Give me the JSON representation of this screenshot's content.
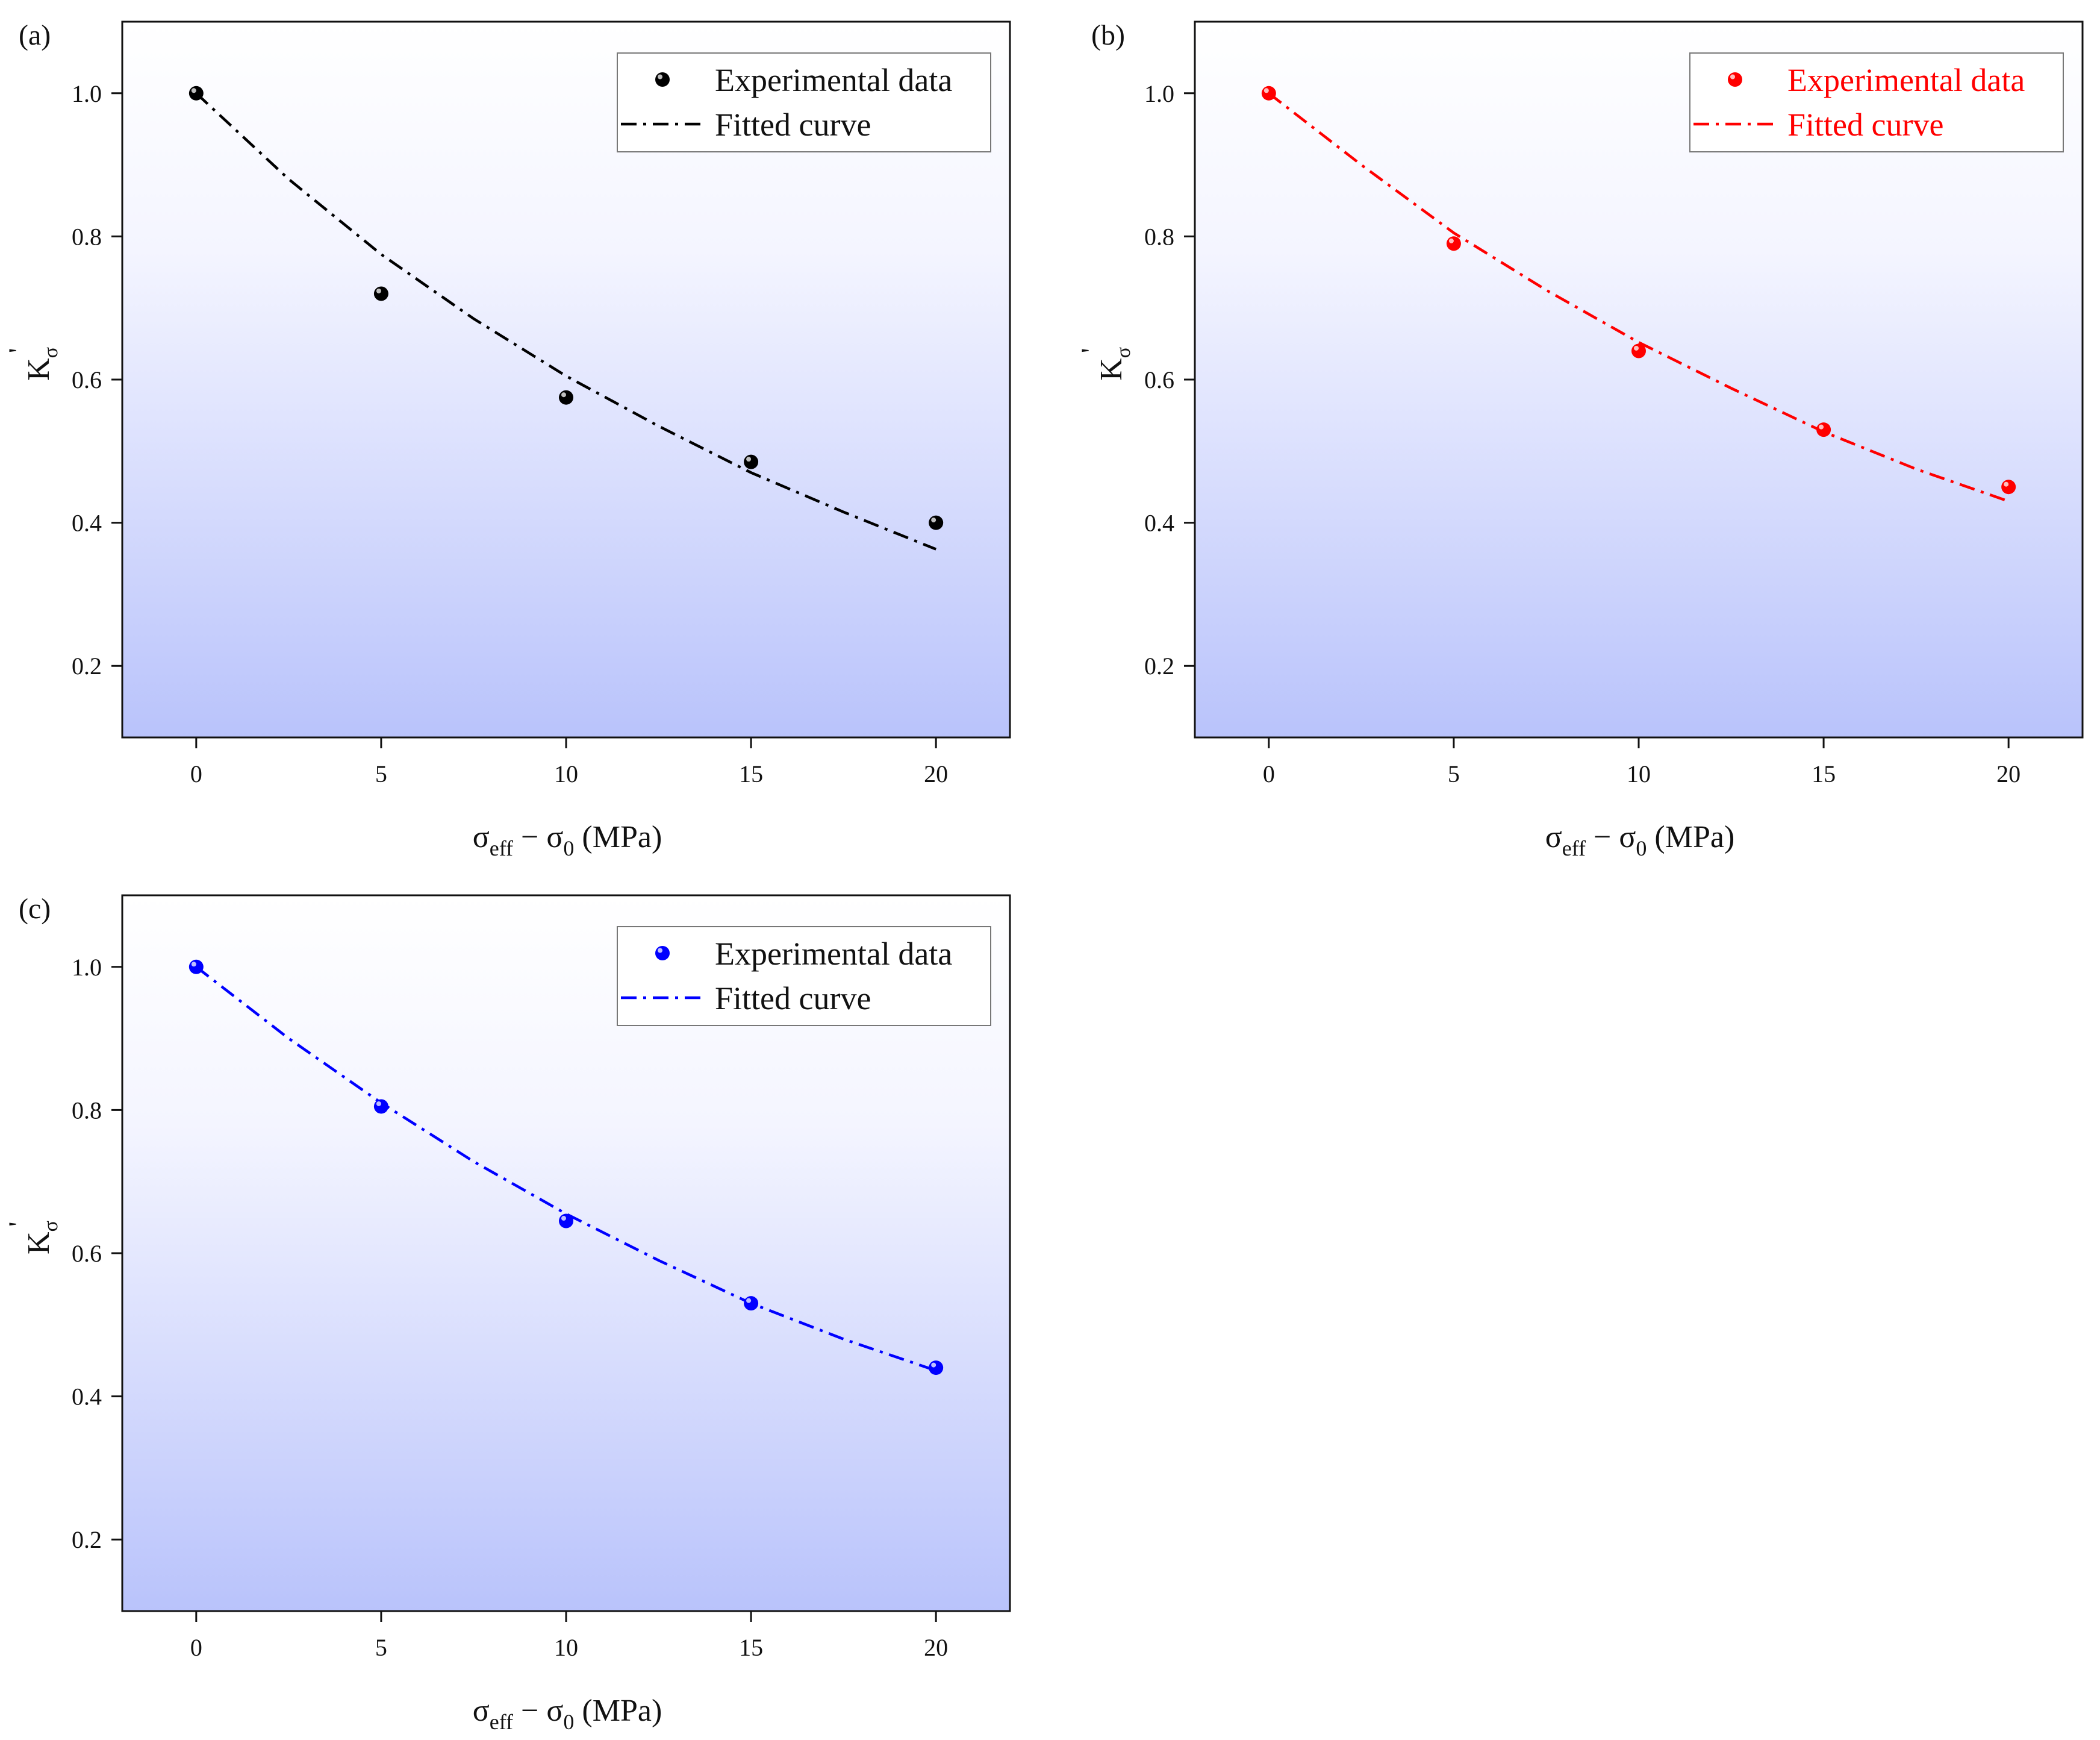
{
  "chart_data": [
    {
      "type": "scatter",
      "panel_label": "(a)",
      "accent_color": "#000000",
      "legend_text_color": "#111111",
      "legend": {
        "experimental": "Experimental data",
        "fitted": "Fitted curve"
      },
      "x_ticks": [
        "0",
        "5",
        "10",
        "15",
        "20"
      ],
      "y_ticks": [
        "0.2",
        "0.4",
        "0.6",
        "0.8",
        "1.0"
      ],
      "xlim": [
        -2,
        22
      ],
      "ylim": [
        0.1,
        1.1
      ],
      "series": [
        {
          "name": "Experimental data",
          "x": [
            0,
            5,
            10,
            15,
            20
          ],
          "y": [
            1.0,
            0.72,
            0.575,
            0.485,
            0.4
          ]
        },
        {
          "name": "Fitted curve",
          "x": [
            0,
            2.5,
            5,
            7.5,
            10,
            12.5,
            15,
            17.5,
            20
          ],
          "y": [
            1.0,
            0.88,
            0.775,
            0.685,
            0.605,
            0.535,
            0.47,
            0.415,
            0.363
          ]
        }
      ]
    },
    {
      "type": "scatter",
      "panel_label": "(b)",
      "accent_color": "#ff0000",
      "legend_text_color": "#ff0000",
      "legend": {
        "experimental": "Experimental data",
        "fitted": "Fitted curve"
      },
      "x_ticks": [
        "0",
        "5",
        "10",
        "15",
        "20"
      ],
      "y_ticks": [
        "0.2",
        "0.4",
        "0.6",
        "0.8",
        "1.0"
      ],
      "xlim": [
        -2,
        22
      ],
      "ylim": [
        0.1,
        1.1
      ],
      "series": [
        {
          "name": "Experimental data",
          "x": [
            0,
            5,
            10,
            15,
            20
          ],
          "y": [
            1.0,
            0.79,
            0.64,
            0.53,
            0.45
          ]
        },
        {
          "name": "Fitted curve",
          "x": [
            0,
            2.5,
            5,
            7.5,
            10,
            12.5,
            15,
            17.5,
            20
          ],
          "y": [
            1.0,
            0.9,
            0.805,
            0.725,
            0.652,
            0.588,
            0.527,
            0.475,
            0.43
          ]
        }
      ]
    },
    {
      "type": "scatter",
      "panel_label": "(c)",
      "accent_color": "#0000ff",
      "legend_text_color": "#111111",
      "legend": {
        "experimental": "Experimental data",
        "fitted": "Fitted curve"
      },
      "x_ticks": [
        "0",
        "5",
        "10",
        "15",
        "20"
      ],
      "y_ticks": [
        "0.2",
        "0.4",
        "0.6",
        "0.8",
        "1.0"
      ],
      "xlim": [
        -2,
        22
      ],
      "ylim": [
        0.1,
        1.1
      ],
      "series": [
        {
          "name": "Experimental data",
          "x": [
            0,
            5,
            10,
            15,
            20
          ],
          "y": [
            1.0,
            0.805,
            0.645,
            0.53,
            0.44
          ]
        },
        {
          "name": "Fitted curve",
          "x": [
            0,
            2.5,
            5,
            7.5,
            10,
            12.5,
            15,
            17.5,
            20
          ],
          "y": [
            1.0,
            0.9,
            0.81,
            0.728,
            0.655,
            0.59,
            0.53,
            0.48,
            0.436
          ]
        }
      ]
    }
  ],
  "axis_titles": {
    "ylabel_main": "K",
    "ylabel_sub": "σ",
    "ylabel_prime": "'",
    "xlabel_main": "σ",
    "xlabel_sub1": "eff",
    "xlabel_mid": " − σ",
    "xlabel_sub2": "0",
    "xlabel_unit": " (MPa)"
  }
}
